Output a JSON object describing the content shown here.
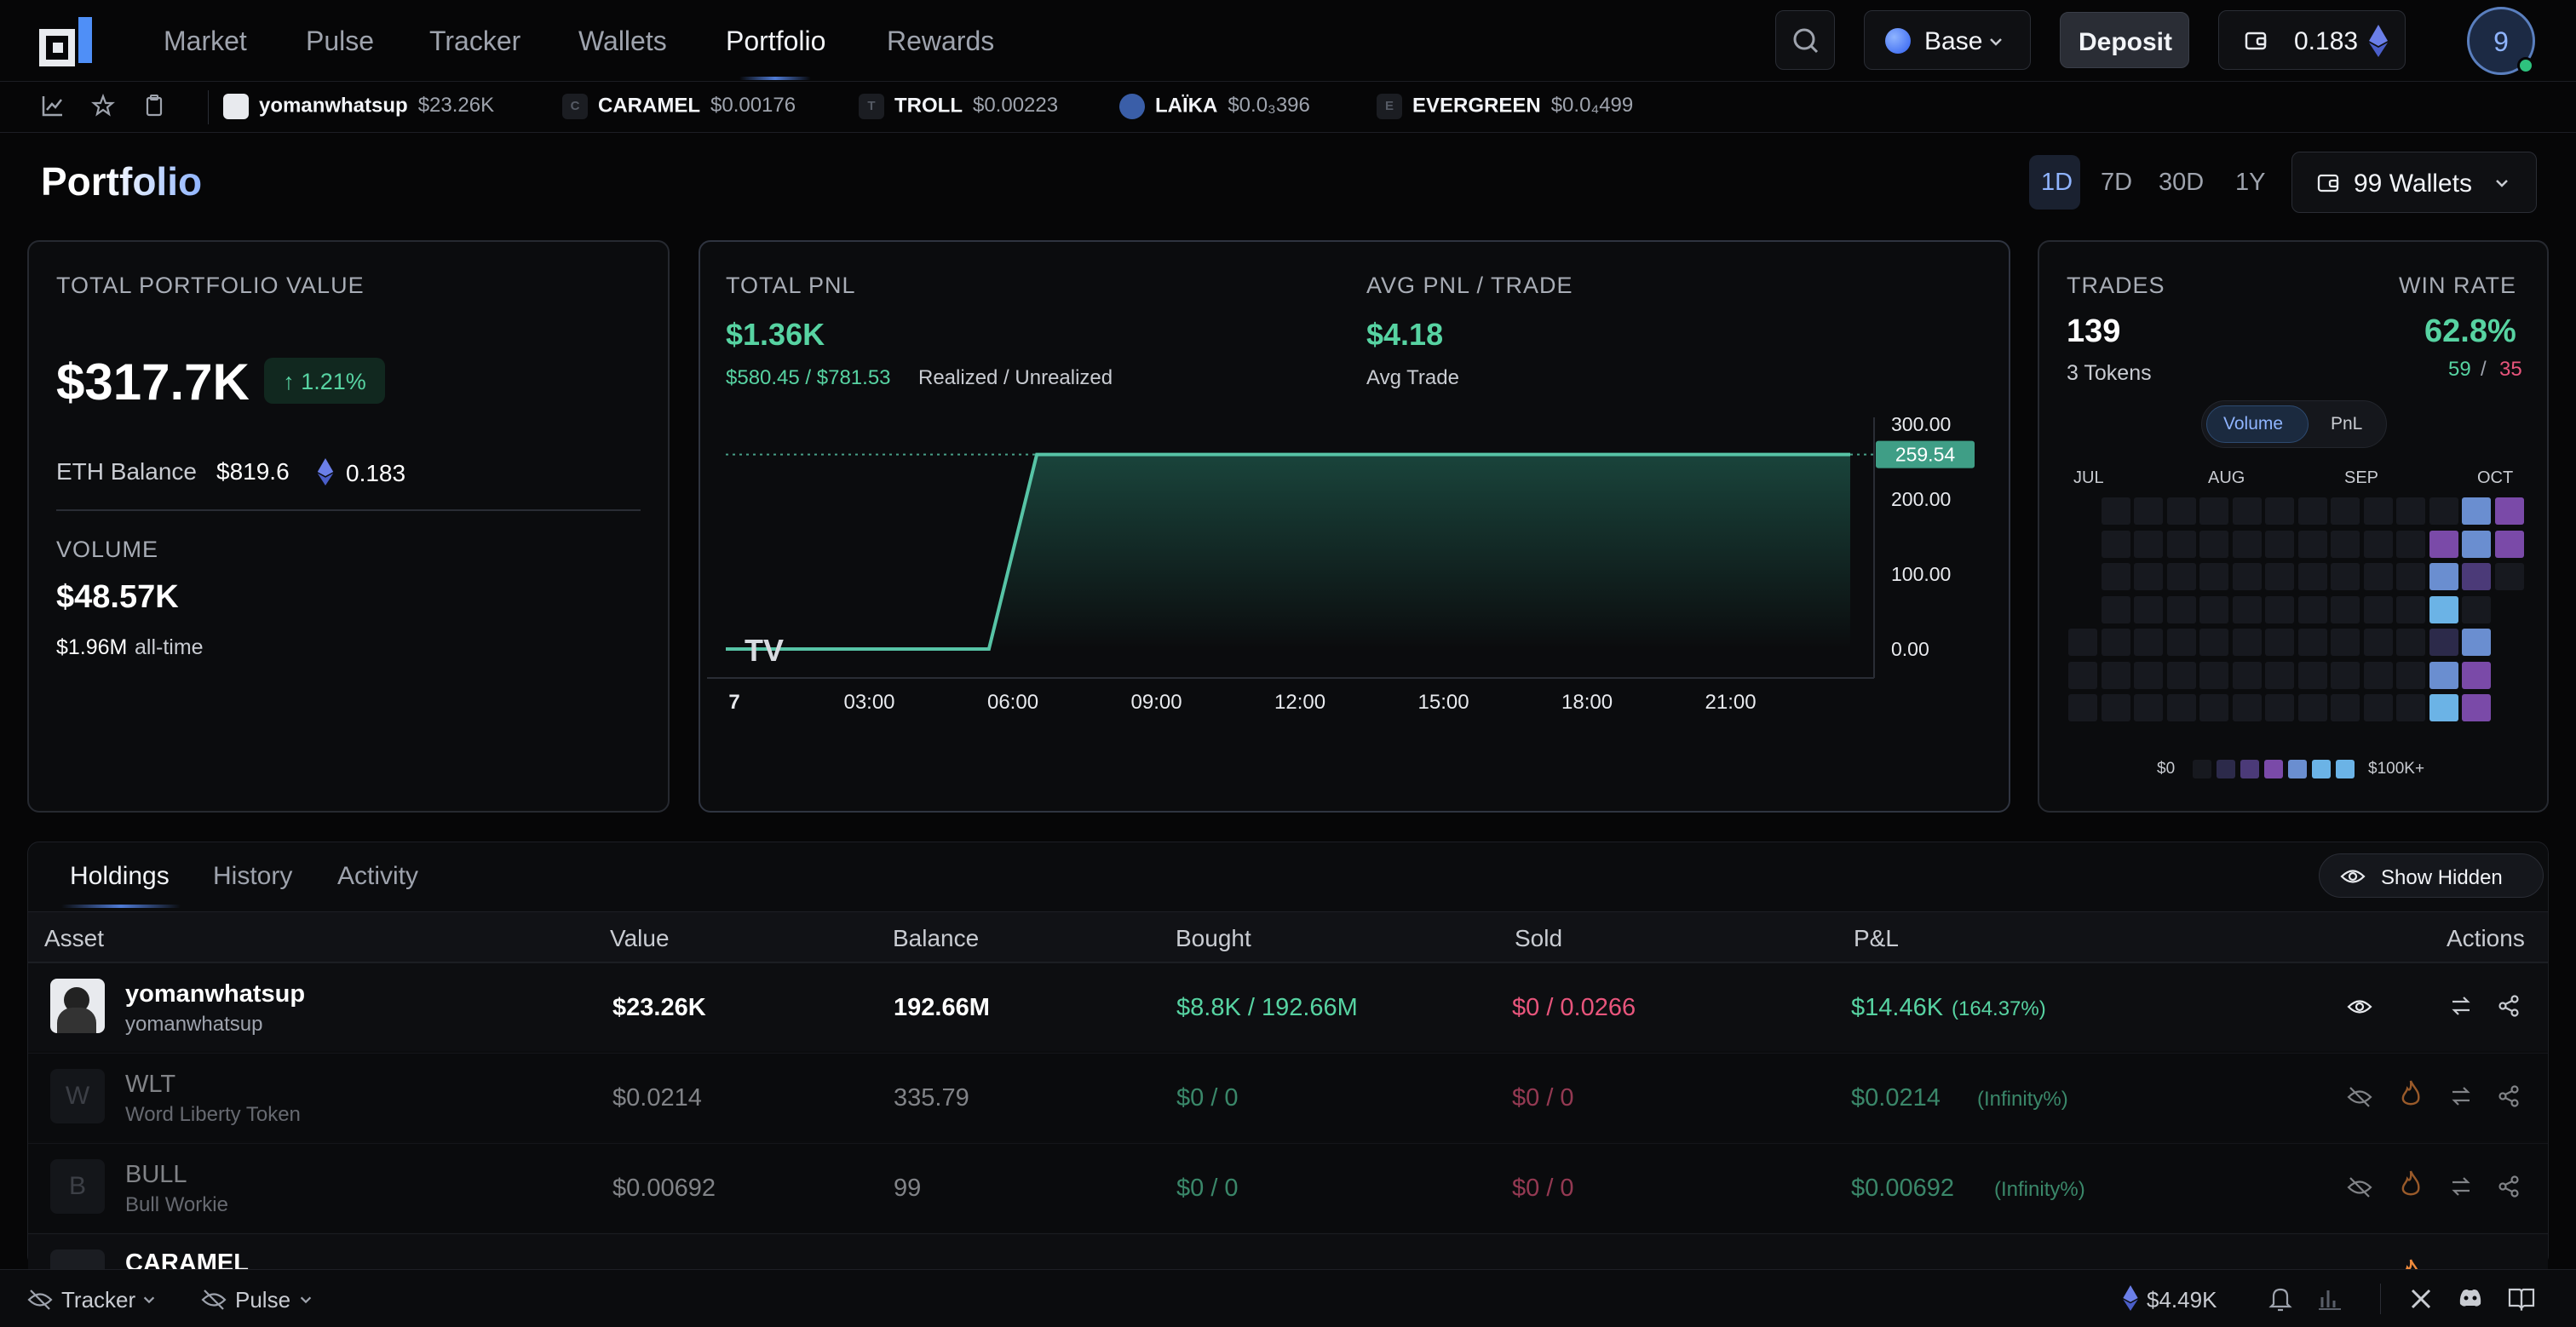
{
  "nav": {
    "items": [
      "Market",
      "Pulse",
      "Tracker",
      "Wallets",
      "Portfolio",
      "Rewards"
    ],
    "network": "Base",
    "deposit_label": "Deposit",
    "wallet_balance": "0.183",
    "avatar_initial": "9"
  },
  "ticker": [
    {
      "name": "yomanwhatsup",
      "price": "$23.26K",
      "icon": "Y"
    },
    {
      "name": "CARAMEL",
      "price": "$0.00176",
      "icon": "C"
    },
    {
      "name": "TROLL",
      "price": "$0.00223",
      "icon": "T"
    },
    {
      "name": "LAÏKA",
      "price": "$0.0₃396",
      "icon": "L"
    },
    {
      "name": "EVERGREEN",
      "price": "$0.0₄499",
      "icon": "E"
    }
  ],
  "page": {
    "title": "Portfolio",
    "timeframes": [
      "1D",
      "7D",
      "30D",
      "1Y"
    ],
    "selected_timeframe": "1D",
    "wallets_label": "99 Wallets"
  },
  "portfolio": {
    "label": "TOTAL PORTFOLIO VALUE",
    "value": "$317.7K",
    "change": "↑ 1.21%",
    "eth_label": "ETH Balance",
    "eth_usd": "$819.6",
    "eth_amount": "0.183",
    "volume_label": "VOLUME",
    "volume_value": "$48.57K",
    "alltime_value": "$1.96M",
    "alltime_label": "all-time"
  },
  "pnl": {
    "label": "TOTAL PNL",
    "value": "$1.36K",
    "realized": "$580.45 / $781.53",
    "realized_label": "Realized / Unrealized",
    "avg_label": "AVG PNL / TRADE",
    "avg_value": "$4.18",
    "avg_sub": "Avg Trade",
    "chart_data": {
      "type": "area",
      "x": [
        "00:00",
        "03:00",
        "05:30",
        "06:30",
        "09:00",
        "12:00",
        "15:00",
        "18:00",
        "21:00",
        "23:30"
      ],
      "values": [
        0,
        0,
        0,
        259.54,
        259.54,
        259.54,
        259.54,
        259.54,
        259.54,
        259.54
      ],
      "x_tick_labels": [
        "7",
        "03:00",
        "06:00",
        "09:00",
        "12:00",
        "15:00",
        "18:00",
        "21:00"
      ],
      "y_tick_labels": [
        "300.00",
        "200.00",
        "100.00",
        "0.00"
      ],
      "ylim": [
        0,
        300
      ],
      "last_value_label": "259.54",
      "colors": {
        "line": "#57c4a6",
        "fill": "#143d35",
        "label_bg": "#3f9e86"
      }
    }
  },
  "trades": {
    "label": "TRADES",
    "value": "139",
    "tokens": "3 Tokens",
    "winrate_label": "WIN RATE",
    "winrate": "62.8%",
    "wins": "59",
    "sep": "/",
    "losses": "35",
    "toggle": [
      "Volume",
      "PnL"
    ],
    "months": [
      "JUL",
      "AUG",
      "SEP",
      "OCT"
    ],
    "legend_min": "$0",
    "legend_max": "$100K+",
    "heatmap_levels": {
      "active": [
        {
          "col": 12,
          "row": 0,
          "level": 4
        },
        {
          "col": 13,
          "row": 0,
          "level": 3
        },
        {
          "col": 11,
          "row": 1,
          "level": 3
        },
        {
          "col": 12,
          "row": 1,
          "level": 4
        },
        {
          "col": 13,
          "row": 1,
          "level": 3
        },
        {
          "col": 11,
          "row": 2,
          "level": 4
        },
        {
          "col": 12,
          "row": 2,
          "level": 2
        },
        {
          "col": 11,
          "row": 3,
          "level": 5
        },
        {
          "col": 11,
          "row": 4,
          "level": 1
        },
        {
          "col": 12,
          "row": 4,
          "level": 4
        },
        {
          "col": 11,
          "row": 5,
          "level": 4
        },
        {
          "col": 12,
          "row": 5,
          "level": 3
        },
        {
          "col": 11,
          "row": 6,
          "level": 5
        },
        {
          "col": 12,
          "row": 6,
          "level": 3
        }
      ]
    }
  },
  "tabs": [
    "Holdings",
    "History",
    "Activity"
  ],
  "show_hidden_label": "Show Hidden",
  "columns": [
    "Asset",
    "Value",
    "Balance",
    "Bought",
    "Sold",
    "P&L",
    "Actions"
  ],
  "holdings": [
    {
      "symbol": "yomanwhatsup",
      "name": "yomanwhatsup",
      "value": "$23.26K",
      "balance": "192.66M",
      "bought": "$8.8K / 192.66M",
      "sold": "$0 / 0.0266",
      "pnl": "$14.46K",
      "pnl_pct": "(164.37%)",
      "hidden": false,
      "icon": ""
    },
    {
      "symbol": "WLT",
      "name": "Word Liberty Token",
      "value": "$0.0214",
      "balance": "335.79",
      "bought": "$0 / 0",
      "sold": "$0 / 0",
      "pnl": "$0.0214",
      "pnl_pct": "(Infinity%)",
      "hidden": true,
      "icon": "W"
    },
    {
      "symbol": "BULL",
      "name": "Bull Workie",
      "value": "$0.00692",
      "balance": "99",
      "bought": "$0 / 0",
      "sold": "$0 / 0",
      "pnl": "$0.00692",
      "pnl_pct": "(Infinity%)",
      "hidden": true,
      "icon": "B"
    },
    {
      "symbol": "CARAMEL",
      "name": "",
      "value": "",
      "balance": "",
      "bought": "",
      "sold": "",
      "pnl": "",
      "pnl_pct": "",
      "hidden": true,
      "icon": ""
    }
  ],
  "footer": {
    "tracker_label": "Tracker",
    "pulse_label": "Pulse",
    "eth_price": "$4.49K"
  }
}
